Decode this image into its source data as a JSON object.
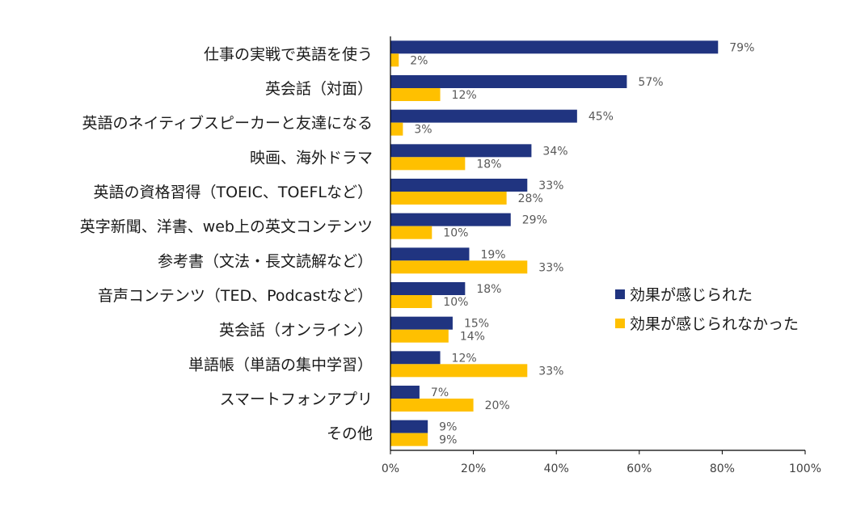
{
  "chart_data": {
    "type": "bar",
    "orientation": "horizontal",
    "categories": [
      "仕事の実戦で英語を使う",
      "英会話（対面）",
      "英語のネイティブスピーカーと友達になる",
      "映画、海外ドラマ",
      "英語の資格習得（TOEIC、TOEFLなど）",
      "英字新聞、洋書、web上の英文コンテンツ",
      "参考書（文法・長文読解など）",
      "音声コンテンツ（TED、Podcastなど）",
      "英会話（オンライン）",
      "単語帳（単語の集中学習）",
      "スマートフォンアプリ",
      "その他"
    ],
    "series": [
      {
        "name": "効果が感じられた",
        "color": "#203480",
        "values": [
          79,
          57,
          45,
          34,
          33,
          29,
          19,
          18,
          15,
          12,
          7,
          9
        ]
      },
      {
        "name": "効果が感じられなかった",
        "color": "#FFC000",
        "values": [
          2,
          12,
          3,
          18,
          28,
          10,
          33,
          10,
          14,
          33,
          20,
          9
        ]
      }
    ],
    "xlim": [
      0,
      100
    ],
    "xticks": [
      "0%",
      "20%",
      "40%",
      "60%",
      "80%",
      "100%"
    ],
    "value_suffix": "%",
    "legend_position": "right",
    "grid": false
  }
}
